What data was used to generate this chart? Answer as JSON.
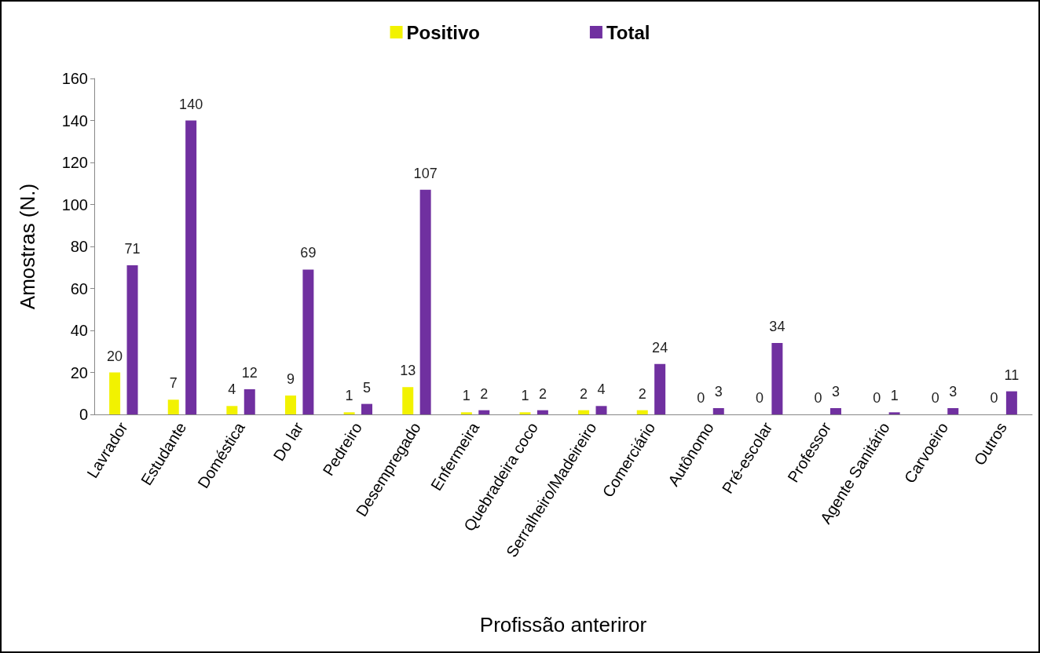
{
  "chart_data": {
    "type": "bar",
    "xlabel": "Profissão anteriror",
    "ylabel": "Amostras (N.)",
    "categories": [
      "Lavrador",
      "Estudante",
      "Doméstica",
      "Do lar",
      "Pedreiro",
      "Desempregado",
      "Enfermeira",
      "Quebradeira coco",
      "Serralheiro/Madeireiro",
      "Comerciário",
      "Autônomo",
      "Pré-escolar",
      "Professor",
      "Agente Sanitário",
      "Carvoeiro",
      "Outros"
    ],
    "series": [
      {
        "name": "Positivo",
        "color": "#f2f200",
        "values": [
          20,
          7,
          4,
          9,
          1,
          13,
          1,
          1,
          2,
          2,
          0,
          0,
          0,
          0,
          0,
          0
        ]
      },
      {
        "name": "Total",
        "color": "#7030a0",
        "values": [
          71,
          140,
          12,
          69,
          5,
          107,
          2,
          2,
          4,
          24,
          3,
          34,
          3,
          1,
          3,
          11
        ]
      }
    ],
    "ylim": [
      0,
      160
    ],
    "yticks": [
      0,
      20,
      40,
      60,
      80,
      100,
      120,
      140,
      160
    ],
    "grid": false,
    "legend": "top",
    "data_labels": true
  }
}
